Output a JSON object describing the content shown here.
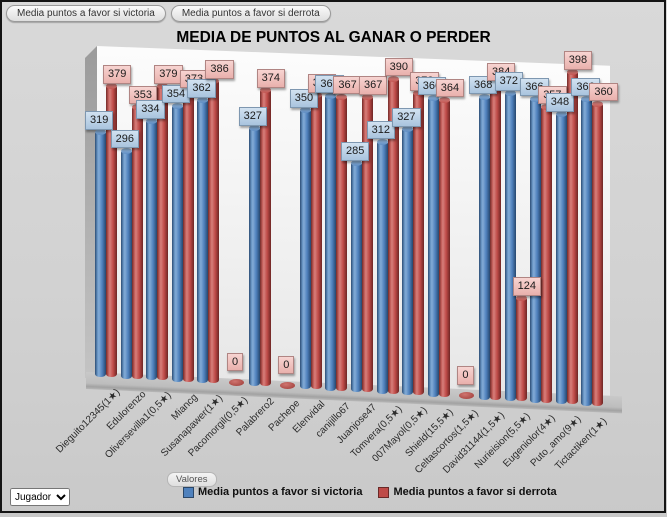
{
  "toolbar": {
    "buttons": [
      {
        "label": "Media puntos a favor si victoria"
      },
      {
        "label": "Media puntos a favor si derrota"
      }
    ]
  },
  "chart_data": {
    "type": "bar",
    "title": "MEDIA DE PUNTOS AL GANAR O PERDER",
    "legend_position": "bottom",
    "data_labels": true,
    "xlabel": "",
    "ylabel": "",
    "ylim": [
      0,
      410
    ],
    "categories": [
      "Dieguito12345(1★)",
      "Edulorenzo",
      "Oliversevilla1(0,5★)",
      "Miancg",
      "Susanapawer(1★)",
      "Pacomorgil(0,5★)",
      "Palabrero2",
      "Pachepe",
      "Elenvidal",
      "canijillo67",
      "Juanjose47",
      "Tomvera(0,5★)",
      "007Mayol(0,5★)",
      "Shield(15,5★)",
      "Celtascortos(1,5★)",
      "David31144(1,5★)",
      "Nurieision(5,5★)",
      "Eugeniolor(4★)",
      "Puto_amo(9★)",
      "Tictactiken(1★)"
    ],
    "series": [
      {
        "name": "Media puntos a favor si victoria",
        "color": "#4f81bd",
        "values": [
          319,
          296,
          334,
          354,
          362,
          0,
          327,
          0,
          350,
          368,
          285,
          312,
          327,
          366,
          0,
          368,
          372,
          366,
          348,
          366
        ]
      },
      {
        "name": "Media puntos a favor si derrota",
        "color": "#bf4b48",
        "values": [
          379,
          353,
          379,
          373,
          386,
          0,
          374,
          0,
          369,
          367,
          367,
          390,
          372,
          364,
          0,
          384,
          124,
          357,
          398,
          360
        ]
      }
    ]
  },
  "controls": {
    "valores_button": "Valores",
    "jugador_dropdown": "Jugador"
  },
  "legend": {
    "items": [
      {
        "label": "Media puntos a favor si victoria",
        "color": "#4f81bd"
      },
      {
        "label": "Media puntos a favor si derrota",
        "color": "#bf4b48"
      }
    ]
  }
}
